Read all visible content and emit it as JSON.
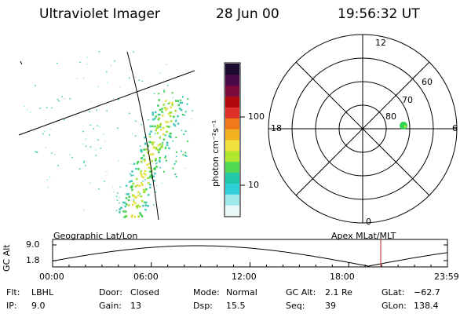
{
  "header": {
    "title": "Ultraviolet Imager",
    "date": "28 Jun 00",
    "time": "19:56:32 UT"
  },
  "colorbar": {
    "label": "photon cm⁻²s⁻¹",
    "ticks": [
      "100",
      "10"
    ],
    "colors": [
      "#1a0a2e",
      "#4a0a4a",
      "#7a0a3a",
      "#b00a10",
      "#e0302a",
      "#f07a1a",
      "#f0b020",
      "#f0e040",
      "#b0e830",
      "#50d850",
      "#20c8a8",
      "#30d0d8",
      "#a0e8e8",
      "#e8f8f8"
    ]
  },
  "polar": {
    "labels": {
      "top": "12",
      "left": "18",
      "right": "6",
      "bottom": "0",
      "ring60": "60",
      "ring70": "70",
      "ring80": "80"
    }
  },
  "left_image": {
    "label": "Geographic Lat/Lon"
  },
  "right_image": {
    "label": "Apex MLat/MLT"
  },
  "altitude_plot": {
    "ylabel": "GC Alt",
    "yticks": [
      "9.0",
      "1.8"
    ],
    "xticks": [
      "00:00",
      "06:00",
      "12:00",
      "18:00",
      "23:59"
    ],
    "marker_time_fraction": 0.831
  },
  "info": {
    "flt_label": "Flt:",
    "flt_value": "LBHL",
    "ip_label": "IP:",
    "ip_value": "9.0",
    "door_label": "Door:",
    "door_value": "Closed",
    "gain_label": "Gain:",
    "gain_value": "13",
    "mode_label": "Mode:",
    "mode_value": "Normal",
    "dsp_label": "Dsp:",
    "dsp_value": "15.5",
    "gcalt_label": "GC Alt:",
    "gcalt_value": "2.1 Re",
    "seq_label": "Seq:",
    "seq_value": "39",
    "glat_label": "GLat:",
    "glat_value": "−62.7",
    "glon_label": "GLon:",
    "glon_value": "138.4"
  }
}
